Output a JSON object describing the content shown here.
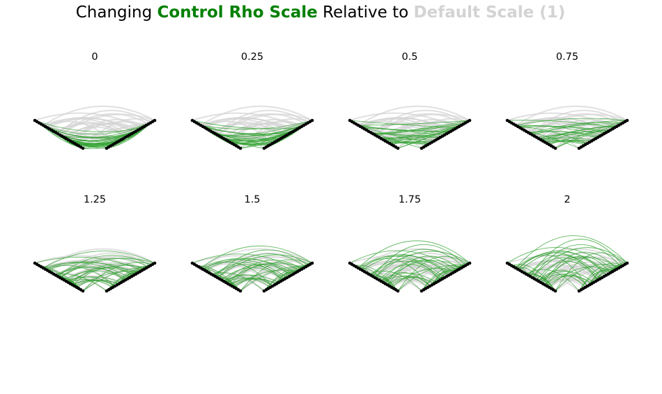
{
  "title": {
    "prefix": "Changing ",
    "highlight": "Control Rho Scale",
    "middle": " Relative to ",
    "reference": "Default Scale (1)"
  },
  "colors": {
    "control": "#2ca02c",
    "default": "#d3d3d3",
    "node": "#000000",
    "title_highlight": "#008000",
    "title_reference": "#d3d3d3"
  },
  "chart_data": {
    "type": "arc-diagram small multiples",
    "panels": [
      {
        "label": "0",
        "scale": 0
      },
      {
        "label": "0.25",
        "scale": 0.25
      },
      {
        "label": "0.5",
        "scale": 0.5
      },
      {
        "label": "0.75",
        "scale": 0.75
      },
      {
        "label": "1.25",
        "scale": 1.25
      },
      {
        "label": "1.5",
        "scale": 1.5
      },
      {
        "label": "1.75",
        "scale": 1.75
      },
      {
        "label": "2",
        "scale": 2
      }
    ],
    "reference_scale": 1,
    "nodes_per_wing": 24,
    "edges_per_panel": 55,
    "grid": false,
    "legend": "none"
  }
}
